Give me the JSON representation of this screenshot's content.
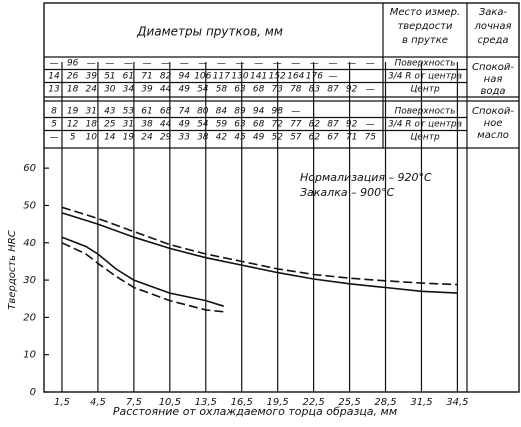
{
  "table": {
    "header": {
      "diameters": "Диаметры прутков, мм",
      "place": [
        "Место измер.",
        "твердости",
        "в прутке"
      ],
      "medium": [
        "Зака-",
        "лочная",
        "среда"
      ]
    },
    "groups": [
      {
        "medium": [
          "Спокой-",
          "ная",
          "вода"
        ],
        "rows": [
          {
            "place": "Поверхность",
            "cells": [
              "—",
              "96",
              "—",
              "—",
              "—",
              "—",
              "—",
              "—",
              "—",
              "—",
              "—",
              "—",
              "—",
              "—",
              "—",
              "—",
              "—",
              "—"
            ]
          },
          {
            "place": "3/4 R от центра",
            "cells": [
              "14",
              "26",
              "39",
              "51",
              "61",
              "71",
              "82",
              "94",
              "106",
              "117",
              "130",
              "141",
              "152",
              "164",
              "176",
              "—"
            ]
          },
          {
            "place": "Центр",
            "cells": [
              "13",
              "18",
              "24",
              "30",
              "34",
              "39",
              "44",
              "49",
              "54",
              "58",
              "63",
              "68",
              "73",
              "78",
              "83",
              "87",
              "92",
              "—"
            ]
          }
        ]
      },
      {
        "medium": [
          "Спокой-",
          "ное",
          "масло"
        ],
        "rows": [
          {
            "place": "Поверхность",
            "cells": [
              "8",
              "19",
              "31",
              "43",
              "53",
              "61",
              "68",
              "74",
              "80",
              "84",
              "89",
              "94",
              "98",
              "—"
            ]
          },
          {
            "place": "3/4 R от центра",
            "cells": [
              "5",
              "12",
              "18",
              "25",
              "31",
              "38",
              "44",
              "49",
              "54",
              "59",
              "63",
              "68",
              "72",
              "77",
              "82",
              "87",
              "92",
              "—"
            ]
          },
          {
            "place": "Центр",
            "cells": [
              "—",
              "5",
              "10",
              "14",
              "19",
              "24",
              "29",
              "33",
              "38",
              "42",
              "45",
              "49",
              "52",
              "57",
              "62",
              "67",
              "71",
              "75"
            ]
          }
        ]
      }
    ]
  },
  "chart_data": {
    "type": "line",
    "xlabel": "Расстояние от охлаждаемого торца образца, мм",
    "ylabel": "Твердость HRC",
    "annotations": [
      "Нормализация – 920°C",
      "Закалка – 900°C"
    ],
    "xlim": [
      0,
      35.3
    ],
    "ylim": [
      0,
      65.4
    ],
    "xticks": [
      {
        "value": 1.5,
        "label": "1,5"
      },
      {
        "value": 4.5,
        "label": "4,5"
      },
      {
        "value": 7.5,
        "label": "7,5"
      },
      {
        "value": 10.5,
        "label": "10,5"
      },
      {
        "value": 13.5,
        "label": "13,5"
      },
      {
        "value": 16.5,
        "label": "16,5"
      },
      {
        "value": 19.5,
        "label": "19,5"
      },
      {
        "value": 22.5,
        "label": "22,5"
      },
      {
        "value": 25.5,
        "label": "25,5"
      },
      {
        "value": 28.5,
        "label": "28,5"
      },
      {
        "value": 31.5,
        "label": "31,5"
      },
      {
        "value": 34.5,
        "label": "34,5"
      }
    ],
    "yticks": [
      0,
      10,
      20,
      30,
      40,
      50,
      60
    ],
    "xgrid": true,
    "series": [
      {
        "color": "#111",
        "dashed": true,
        "x": [
          1.5,
          4.5,
          7.5,
          10.5,
          13.5,
          16.5,
          19.5,
          22.5,
          25.5,
          28.5,
          31.5,
          34.5
        ],
        "values": [
          49.5,
          46.5,
          43,
          39.5,
          37,
          35,
          33,
          31.5,
          30.5,
          29.8,
          29.2,
          28.8
        ]
      },
      {
        "color": "#111",
        "dashed": false,
        "x": [
          1.5,
          4.5,
          7.5,
          10.5,
          13.5,
          16.5,
          19.5,
          22.5,
          25.5,
          28.5,
          31.5,
          34.5
        ],
        "values": [
          48,
          45,
          41.5,
          38.5,
          36,
          34,
          32,
          30.3,
          29,
          28,
          27,
          26.5
        ]
      },
      {
        "color": "#111",
        "dashed": false,
        "x": [
          1.5,
          3.5,
          4.5,
          6,
          7.5,
          10.5,
          13.5,
          15
        ],
        "values": [
          41.5,
          39,
          37,
          33,
          30,
          26.5,
          24.5,
          23
        ]
      },
      {
        "color": "#111",
        "dashed": true,
        "x": [
          1.5,
          3.5,
          4.5,
          6,
          7.5,
          10.5,
          13.5,
          15
        ],
        "values": [
          40,
          37,
          34.5,
          31,
          28,
          24.5,
          22,
          21.5
        ]
      }
    ]
  }
}
